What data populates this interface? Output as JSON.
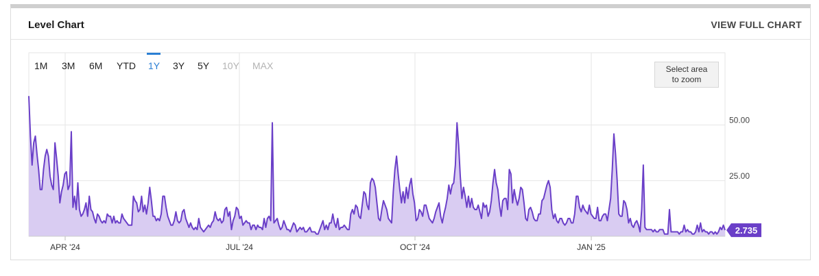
{
  "header": {
    "title": "Level Chart",
    "view_full_label": "VIEW FULL CHART"
  },
  "ranges": [
    {
      "label": "1M",
      "state": "normal"
    },
    {
      "label": "3M",
      "state": "normal"
    },
    {
      "label": "6M",
      "state": "normal"
    },
    {
      "label": "YTD",
      "state": "normal"
    },
    {
      "label": "1Y",
      "state": "active"
    },
    {
      "label": "3Y",
      "state": "normal"
    },
    {
      "label": "5Y",
      "state": "normal"
    },
    {
      "label": "10Y",
      "state": "disabled"
    },
    {
      "label": "MAX",
      "state": "disabled"
    }
  ],
  "zoom_hint": {
    "line1": "Select area",
    "line2": "to zoom"
  },
  "colors": {
    "line": "#6a3fc8",
    "fill": "#d9ccf2",
    "badge": "#6a3fc8",
    "active": "#2b7fd4"
  },
  "chart_data": {
    "type": "area",
    "title": "",
    "xlabel": "",
    "ylabel": "",
    "y_ticks": [
      "25.00",
      "50.00"
    ],
    "ylim": [
      0,
      70
    ],
    "x_tick_labels": [
      "APR '24",
      "JUL '24",
      "OCT '24",
      "JAN '25"
    ],
    "last_value_label": "2.735",
    "grid": true,
    "series": [
      {
        "values": [
          63,
          45,
          32,
          42,
          45,
          37,
          30,
          21,
          21,
          30,
          36,
          39,
          36,
          27,
          23,
          21,
          42,
          35,
          27,
          15,
          20,
          23,
          28,
          29,
          21,
          23,
          47,
          13,
          18,
          12,
          24,
          12,
          9,
          10,
          12,
          15,
          9,
          18,
          12,
          11,
          8,
          6,
          10,
          9,
          7,
          6,
          7,
          6,
          10,
          9,
          9,
          6,
          9,
          6,
          7,
          6,
          6,
          10,
          8,
          7,
          6,
          5,
          5,
          5,
          18,
          16,
          15,
          11,
          12,
          18,
          11,
          14,
          10,
          15,
          22,
          16,
          9,
          9,
          7,
          8,
          7,
          10,
          18,
          18,
          13,
          9,
          7,
          5,
          5,
          7,
          11,
          7,
          6,
          7,
          11,
          12,
          8,
          6,
          4,
          6,
          4,
          3,
          4,
          3,
          8,
          4,
          3,
          2,
          3,
          4,
          5,
          4,
          6,
          7,
          11,
          8,
          7,
          8,
          6,
          7,
          12,
          13,
          9,
          11,
          3,
          7,
          9,
          13,
          12,
          8,
          9,
          5,
          6,
          7,
          6,
          6,
          3,
          5,
          5,
          3,
          5,
          4,
          4,
          3,
          8,
          4,
          8,
          9,
          7,
          51,
          6,
          7,
          8,
          5,
          3,
          4,
          7,
          5,
          3,
          3,
          2,
          4,
          6,
          5,
          2,
          3,
          4,
          3,
          4,
          2,
          2,
          3,
          4,
          2,
          2,
          2,
          1,
          1,
          3,
          5,
          7,
          3,
          5,
          3,
          6,
          6,
          10,
          6,
          4,
          8,
          3,
          4,
          4,
          5,
          4,
          3,
          3,
          10,
          12,
          10,
          14,
          13,
          9,
          8,
          14,
          20,
          19,
          14,
          12,
          24,
          26,
          25,
          22,
          15,
          8,
          7,
          12,
          16,
          14,
          12,
          8,
          7,
          6,
          20,
          30,
          36,
          28,
          21,
          15,
          20,
          15,
          22,
          17,
          23,
          26,
          19,
          15,
          7,
          8,
          12,
          11,
          9,
          14,
          14,
          11,
          8,
          7,
          6,
          8,
          11,
          13,
          15,
          9,
          6,
          10,
          13,
          17,
          23,
          19,
          23,
          24,
          32,
          51,
          41,
          27,
          17,
          22,
          18,
          13,
          18,
          13,
          17,
          13,
          12,
          12,
          14,
          11,
          8,
          15,
          13,
          14,
          9,
          11,
          16,
          24,
          30,
          24,
          21,
          14,
          9,
          16,
          17,
          17,
          12,
          30,
          28,
          15,
          21,
          17,
          14,
          17,
          22,
          21,
          15,
          8,
          7,
          12,
          13,
          11,
          8,
          7,
          7,
          10,
          10,
          16,
          17,
          20,
          23,
          25,
          22,
          12,
          8,
          10,
          7,
          6,
          8,
          8,
          6,
          5,
          6,
          8,
          8,
          6,
          6,
          10,
          18,
          18,
          13,
          11,
          14,
          12,
          11,
          10,
          14,
          10,
          9,
          8,
          8,
          13,
          7,
          7,
          9,
          10,
          10,
          7,
          12,
          17,
          30,
          46,
          37,
          25,
          10,
          9,
          9,
          16,
          15,
          12,
          6,
          8,
          5,
          4,
          6,
          7,
          5,
          2,
          12,
          32,
          4,
          3,
          3,
          3,
          3,
          2,
          3,
          2,
          2,
          3,
          3,
          3,
          1,
          1,
          1,
          12,
          2,
          2,
          2,
          2,
          2,
          1,
          2,
          2,
          5,
          2,
          3,
          2,
          2,
          1,
          1,
          2,
          5,
          2,
          6,
          2,
          3,
          2,
          2,
          1,
          2,
          2,
          1,
          2,
          1,
          2,
          4,
          3,
          5,
          2.735
        ]
      }
    ]
  }
}
